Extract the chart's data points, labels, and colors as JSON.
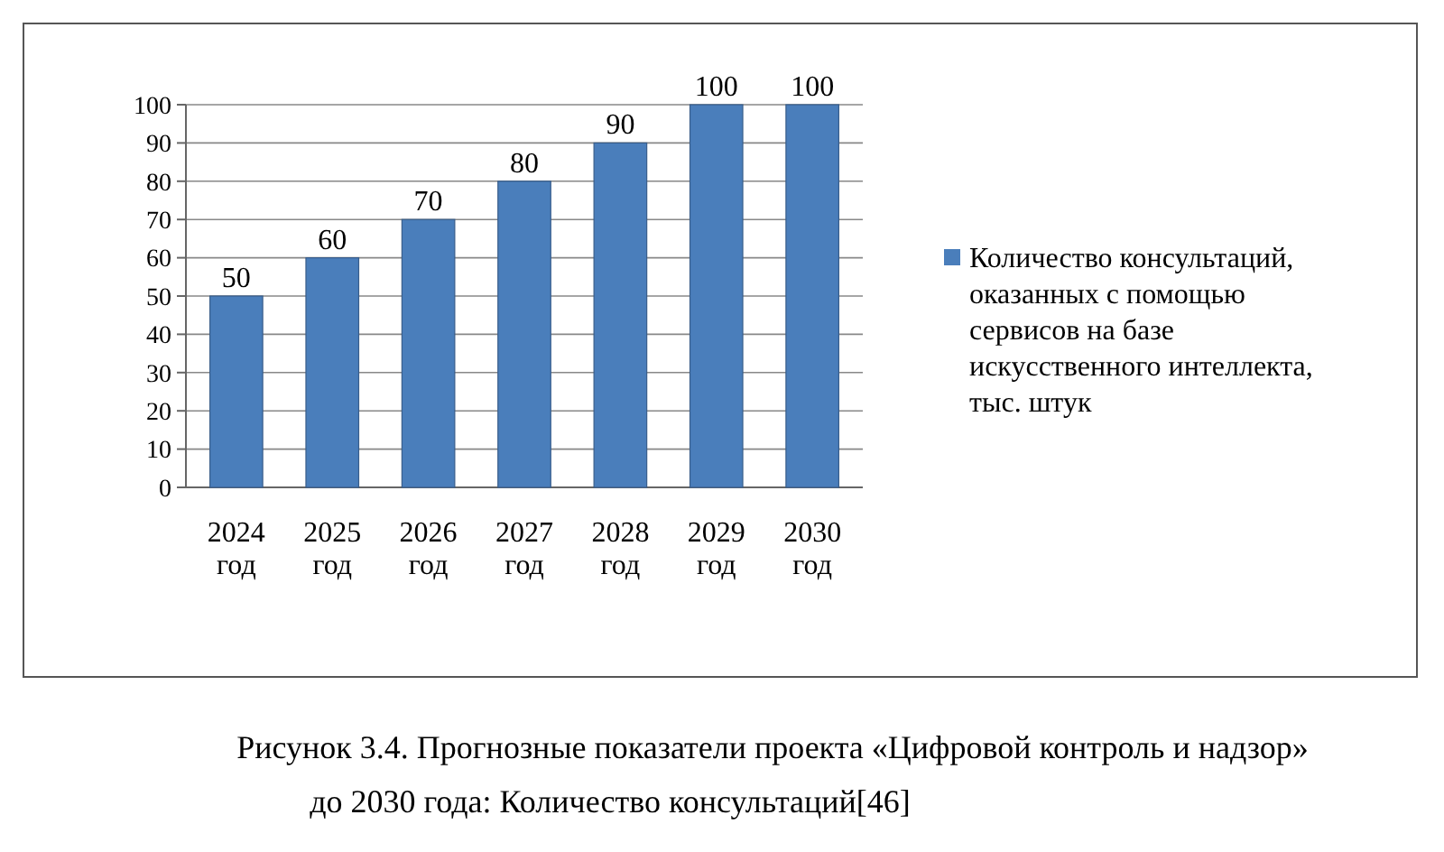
{
  "chart_data": {
    "type": "bar",
    "categories": [
      "2024 год",
      "2025 год",
      "2026 год",
      "2027 год",
      "2028 год",
      "2029 год",
      "2030 год"
    ],
    "series": [
      {
        "name": "Количество консультаций, оказанных с помощью сервисов на базе искусственного интеллекта, тыс. штук",
        "color": "#4a7ebb",
        "values": [
          50,
          60,
          70,
          80,
          90,
          100,
          100
        ]
      }
    ],
    "ylim": [
      0,
      100
    ],
    "yticks": [
      0,
      10,
      20,
      30,
      40,
      50,
      60,
      70,
      80,
      90,
      100
    ],
    "grid": "y",
    "legend": "right",
    "data_labels": true,
    "annotations": [
      "Рисунок 3.4. Прогнозные показатели проекта «Цифровой контроль и надзор» до 2030 года: Количество консультаций[46]"
    ]
  }
}
